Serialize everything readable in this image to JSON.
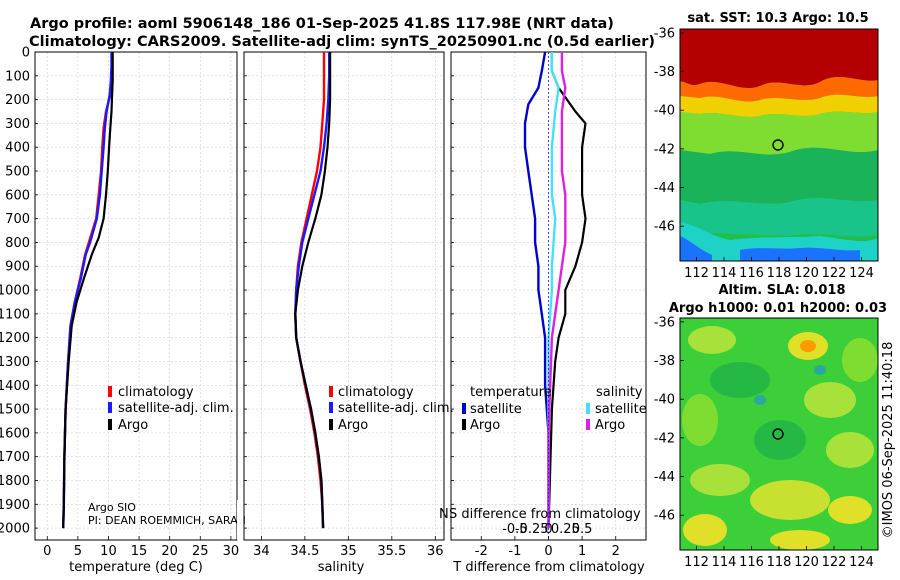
{
  "title_line1": "Argo profile: aoml 5906148_186 01-Sep-2025 41.8S 117.98E (NRT data)",
  "title_line2": "Climatology: CARS2009. Satellite-adj clim: synTS_20250901.nc (0.5d earlier)",
  "colors": {
    "climatology": "#ff0000",
    "satellite": "#1a1aff",
    "argo": "#000000",
    "sat_diff_temp": "#0000cc",
    "sat_diff_sal": "#44e0ff",
    "argo_diff_sal": "#e020e0",
    "zero_line": "#1a1aff"
  },
  "depth_axis": {
    "ticks": [
      0,
      100,
      200,
      300,
      400,
      500,
      600,
      700,
      800,
      900,
      1000,
      1100,
      1200,
      1300,
      1400,
      1500,
      1600,
      1700,
      1800,
      1900,
      2000
    ],
    "ylim": [
      0,
      2050
    ]
  },
  "legend_labels": {
    "climatology": "climatology",
    "satellite": "satellite-adj. clim.",
    "argo": "Argo",
    "temperature": "temperature",
    "salinity": "salinity",
    "satellite_short": "satellite",
    "argo_short": "Argo"
  },
  "credits": {
    "line1": "Argo SIO",
    "line2": "PI: DEAN ROEMMICH, SARAH"
  },
  "diff_title": "S difference from climatology",
  "diff_title_prefix": "N",
  "sst_title": "sat. SST: 10.3 Argo: 10.5",
  "sla_title_line1": "Altim. SLA: 0.018",
  "sla_title_line2": "Argo h1000: 0.01 h2000: 0.03",
  "watermark": "©IMOS 06-Sep-2025 11:40:18",
  "chart_data": [
    {
      "type": "line",
      "xlabel": "temperature (deg C)",
      "ylabel": "depth",
      "xlim": [
        -2,
        31
      ],
      "xticks": [
        0,
        5,
        10,
        15,
        20,
        25,
        30
      ],
      "ylim": [
        0,
        2050
      ],
      "series": [
        {
          "name": "climatology",
          "color_key": "climatology",
          "points": [
            [
              10.6,
              0
            ],
            [
              10.6,
              60
            ],
            [
              10.5,
              120
            ],
            [
              10.3,
              180
            ],
            [
              9.6,
              250
            ],
            [
              9.2,
              320
            ],
            [
              9.0,
              400
            ],
            [
              8.8,
              500
            ],
            [
              8.4,
              600
            ],
            [
              8.0,
              700
            ],
            [
              6.8,
              800
            ],
            [
              6.2,
              850
            ],
            [
              5.4,
              950
            ],
            [
              4.5,
              1050
            ],
            [
              3.8,
              1150
            ],
            [
              3.4,
              1300
            ],
            [
              3.0,
              1500
            ],
            [
              2.8,
              1700
            ],
            [
              2.7,
              1900
            ],
            [
              2.6,
              2000
            ]
          ]
        },
        {
          "name": "satellite-adj. clim.",
          "color_key": "satellite",
          "points": [
            [
              10.5,
              0
            ],
            [
              10.5,
              60
            ],
            [
              10.4,
              120
            ],
            [
              10.2,
              180
            ],
            [
              9.7,
              250
            ],
            [
              9.4,
              320
            ],
            [
              9.2,
              400
            ],
            [
              8.9,
              500
            ],
            [
              8.6,
              600
            ],
            [
              8.1,
              700
            ],
            [
              7.0,
              800
            ],
            [
              6.3,
              850
            ],
            [
              5.5,
              950
            ],
            [
              4.5,
              1050
            ],
            [
              3.8,
              1150
            ],
            [
              3.4,
              1300
            ],
            [
              3.0,
              1500
            ],
            [
              2.8,
              1700
            ],
            [
              2.7,
              1900
            ],
            [
              2.6,
              2000
            ]
          ]
        },
        {
          "name": "Argo",
          "color_key": "argo",
          "points": [
            [
              10.7,
              0
            ],
            [
              10.7,
              60
            ],
            [
              10.7,
              120
            ],
            [
              10.6,
              180
            ],
            [
              10.5,
              250
            ],
            [
              10.3,
              320
            ],
            [
              10.1,
              400
            ],
            [
              9.9,
              500
            ],
            [
              9.6,
              600
            ],
            [
              9.2,
              700
            ],
            [
              8.4,
              780
            ],
            [
              7.3,
              850
            ],
            [
              6.0,
              950
            ],
            [
              4.8,
              1050
            ],
            [
              4.0,
              1150
            ],
            [
              3.5,
              1300
            ],
            [
              3.0,
              1500
            ],
            [
              2.8,
              1700
            ],
            [
              2.7,
              1900
            ],
            [
              2.6,
              2000
            ]
          ]
        }
      ],
      "legend": [
        "climatology",
        "satellite-adj. clim.",
        "Argo"
      ]
    },
    {
      "type": "line",
      "xlabel": "salinity",
      "ylabel": "depth",
      "xlim": [
        33.8,
        36.1
      ],
      "xticks": [
        34,
        34.5,
        35,
        35.5,
        36
      ],
      "ylim": [
        0,
        2050
      ],
      "series": [
        {
          "name": "climatology",
          "color_key": "climatology",
          "points": [
            [
              34.72,
              0
            ],
            [
              34.72,
              100
            ],
            [
              34.72,
              200
            ],
            [
              34.7,
              300
            ],
            [
              34.68,
              400
            ],
            [
              34.64,
              500
            ],
            [
              34.58,
              600
            ],
            [
              34.52,
              700
            ],
            [
              34.46,
              800
            ],
            [
              34.42,
              900
            ],
            [
              34.4,
              1000
            ],
            [
              34.39,
              1100
            ],
            [
              34.4,
              1200
            ],
            [
              34.45,
              1300
            ],
            [
              34.5,
              1400
            ],
            [
              34.56,
              1500
            ],
            [
              34.61,
              1600
            ],
            [
              34.65,
              1700
            ],
            [
              34.68,
              1800
            ],
            [
              34.7,
              1900
            ],
            [
              34.71,
              2000
            ]
          ]
        },
        {
          "name": "satellite-adj. clim.",
          "color_key": "satellite",
          "points": [
            [
              34.78,
              0
            ],
            [
              34.78,
              100
            ],
            [
              34.77,
              200
            ],
            [
              34.75,
              300
            ],
            [
              34.72,
              400
            ],
            [
              34.68,
              500
            ],
            [
              34.61,
              600
            ],
            [
              34.54,
              700
            ],
            [
              34.47,
              800
            ],
            [
              34.43,
              900
            ],
            [
              34.4,
              1000
            ],
            [
              34.39,
              1100
            ],
            [
              34.4,
              1200
            ],
            [
              34.45,
              1300
            ],
            [
              34.51,
              1400
            ],
            [
              34.57,
              1500
            ],
            [
              34.62,
              1600
            ],
            [
              34.66,
              1700
            ],
            [
              34.69,
              1800
            ],
            [
              34.7,
              1900
            ],
            [
              34.71,
              2000
            ]
          ]
        },
        {
          "name": "Argo",
          "color_key": "argo",
          "points": [
            [
              34.79,
              0
            ],
            [
              34.79,
              100
            ],
            [
              34.79,
              200
            ],
            [
              34.78,
              300
            ],
            [
              34.76,
              400
            ],
            [
              34.73,
              500
            ],
            [
              34.69,
              600
            ],
            [
              34.62,
              700
            ],
            [
              34.54,
              800
            ],
            [
              34.47,
              900
            ],
            [
              34.42,
              1000
            ],
            [
              34.39,
              1100
            ],
            [
              34.4,
              1200
            ],
            [
              34.45,
              1300
            ],
            [
              34.51,
              1400
            ],
            [
              34.57,
              1500
            ],
            [
              34.62,
              1600
            ],
            [
              34.66,
              1700
            ],
            [
              34.69,
              1800
            ],
            [
              34.7,
              1900
            ],
            [
              34.71,
              2000
            ]
          ]
        }
      ],
      "legend": [
        "climatology",
        "satellite-adj. clim.",
        "Argo"
      ]
    },
    {
      "type": "line",
      "xlabel": "T difference from climatology",
      "xlim": [
        -2.9,
        2.9
      ],
      "xticks": [
        -2,
        -1,
        0,
        1,
        2
      ],
      "secondary_xticks": [
        -0.5,
        -0.25,
        0,
        0.25,
        0.5
      ],
      "ylim": [
        0,
        2050
      ],
      "series": [
        {
          "name": "temperature satellite",
          "color_key": "sat_diff_temp",
          "points": [
            [
              -0.1,
              0
            ],
            [
              -0.2,
              80
            ],
            [
              -0.3,
              150
            ],
            [
              -0.6,
              220
            ],
            [
              -0.7,
              300
            ],
            [
              -0.7,
              400
            ],
            [
              -0.6,
              500
            ],
            [
              -0.5,
              600
            ],
            [
              -0.4,
              700
            ],
            [
              -0.4,
              800
            ],
            [
              -0.3,
              900
            ],
            [
              -0.3,
              1000
            ],
            [
              -0.2,
              1100
            ],
            [
              -0.1,
              1200
            ],
            [
              -0.1,
              1400
            ],
            [
              0.0,
              1600
            ],
            [
              0.0,
              2000
            ]
          ]
        },
        {
          "name": "temperature Argo",
          "color_key": "argo",
          "points": [
            [
              0.1,
              0
            ],
            [
              0.1,
              80
            ],
            [
              0.3,
              150
            ],
            [
              0.8,
              250
            ],
            [
              1.1,
              300
            ],
            [
              1.0,
              400
            ],
            [
              1.0,
              500
            ],
            [
              1.0,
              600
            ],
            [
              1.1,
              700
            ],
            [
              1.0,
              800
            ],
            [
              0.8,
              900
            ],
            [
              0.5,
              1000
            ],
            [
              0.5,
              1100
            ],
            [
              0.3,
              1200
            ],
            [
              0.2,
              1300
            ],
            [
              0.1,
              1500
            ],
            [
              0.0,
              2000
            ]
          ]
        },
        {
          "name": "salinity satellite",
          "color_key": "sat_diff_sal",
          "points": [
            [
              0.1,
              0
            ],
            [
              0.1,
              80
            ],
            [
              0.3,
              150
            ],
            [
              0.2,
              250
            ],
            [
              0.1,
              400
            ],
            [
              0.1,
              600
            ],
            [
              0.2,
              700
            ],
            [
              0.1,
              900
            ],
            [
              0.1,
              1000
            ],
            [
              0.0,
              1200
            ],
            [
              0.0,
              2000
            ]
          ]
        },
        {
          "name": "salinity Argo",
          "color_key": "argo_diff_sal",
          "points": [
            [
              0.4,
              0
            ],
            [
              0.4,
              80
            ],
            [
              0.5,
              150
            ],
            [
              0.4,
              250
            ],
            [
              0.4,
              400
            ],
            [
              0.4,
              500
            ],
            [
              0.5,
              600
            ],
            [
              0.5,
              700
            ],
            [
              0.5,
              800
            ],
            [
              0.4,
              900
            ],
            [
              0.3,
              1000
            ],
            [
              0.2,
              1100
            ],
            [
              0.1,
              1200
            ],
            [
              0.05,
              1400
            ],
            [
              0.0,
              1600
            ],
            [
              0.0,
              2000
            ]
          ]
        }
      ],
      "legend": [
        "temperature satellite",
        "temperature Argo",
        "salinity satellite",
        "salinity Argo"
      ]
    },
    {
      "type": "heatmap",
      "title": "sat. SST: 10.3 Argo: 10.5",
      "xticks": [
        112,
        114,
        116,
        118,
        120,
        122,
        124
      ],
      "yticks": [
        -36,
        -38,
        -40,
        -42,
        -44,
        -46
      ],
      "xlim": [
        110.8,
        125.2
      ],
      "ylim": [
        -47.8,
        -35.8
      ],
      "marker": [
        117.98,
        -41.8
      ]
    },
    {
      "type": "heatmap",
      "title": "Altim. SLA: 0.018",
      "subtitle": "Argo h1000: 0.01 h2000: 0.03",
      "xticks": [
        112,
        114,
        116,
        118,
        120,
        122,
        124
      ],
      "yticks": [
        -36,
        -38,
        -40,
        -42,
        -44,
        -46
      ],
      "xlim": [
        110.8,
        125.2
      ],
      "ylim": [
        -47.8,
        -35.8
      ],
      "marker": [
        117.98,
        -41.8
      ]
    }
  ]
}
